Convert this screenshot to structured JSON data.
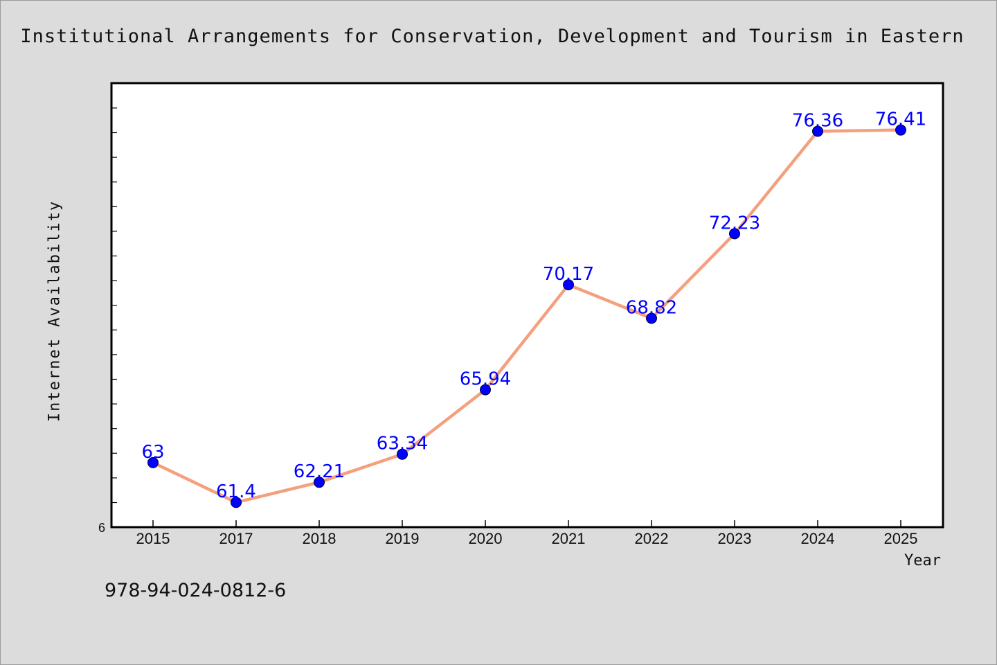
{
  "chart_data": {
    "type": "line",
    "title": "Institutional Arrangements for Conservation, Development and Tourism in Eastern",
    "xlabel": "Year",
    "ylabel": "Internet Availability",
    "categories": [
      "2015",
      "2017",
      "2018",
      "2019",
      "2020",
      "2021",
      "2022",
      "2023",
      "2024",
      "2025"
    ],
    "series": [
      {
        "values": [
          63,
          61.4,
          62.21,
          63.34,
          65.94,
          70.17,
          68.82,
          72.23,
          76.36,
          76.41
        ],
        "labels": [
          "63",
          "61.4",
          "62.21",
          "63.34",
          "65.94",
          "70.17",
          "68.82",
          "72.23",
          "76.36",
          "76.41"
        ],
        "line_color": "#f4a07e",
        "marker_color": "#0000ff",
        "label_color": "#0000ff"
      }
    ],
    "y_tick_label": "6",
    "ylim": [
      60.4,
      78.3
    ],
    "grid": false,
    "legend": "none"
  },
  "footer": {
    "isbn": "978-94-024-0812-6"
  },
  "colors": {
    "background": "#dcdcdc",
    "plot_area": "#ffffff",
    "axis": "#000000"
  }
}
